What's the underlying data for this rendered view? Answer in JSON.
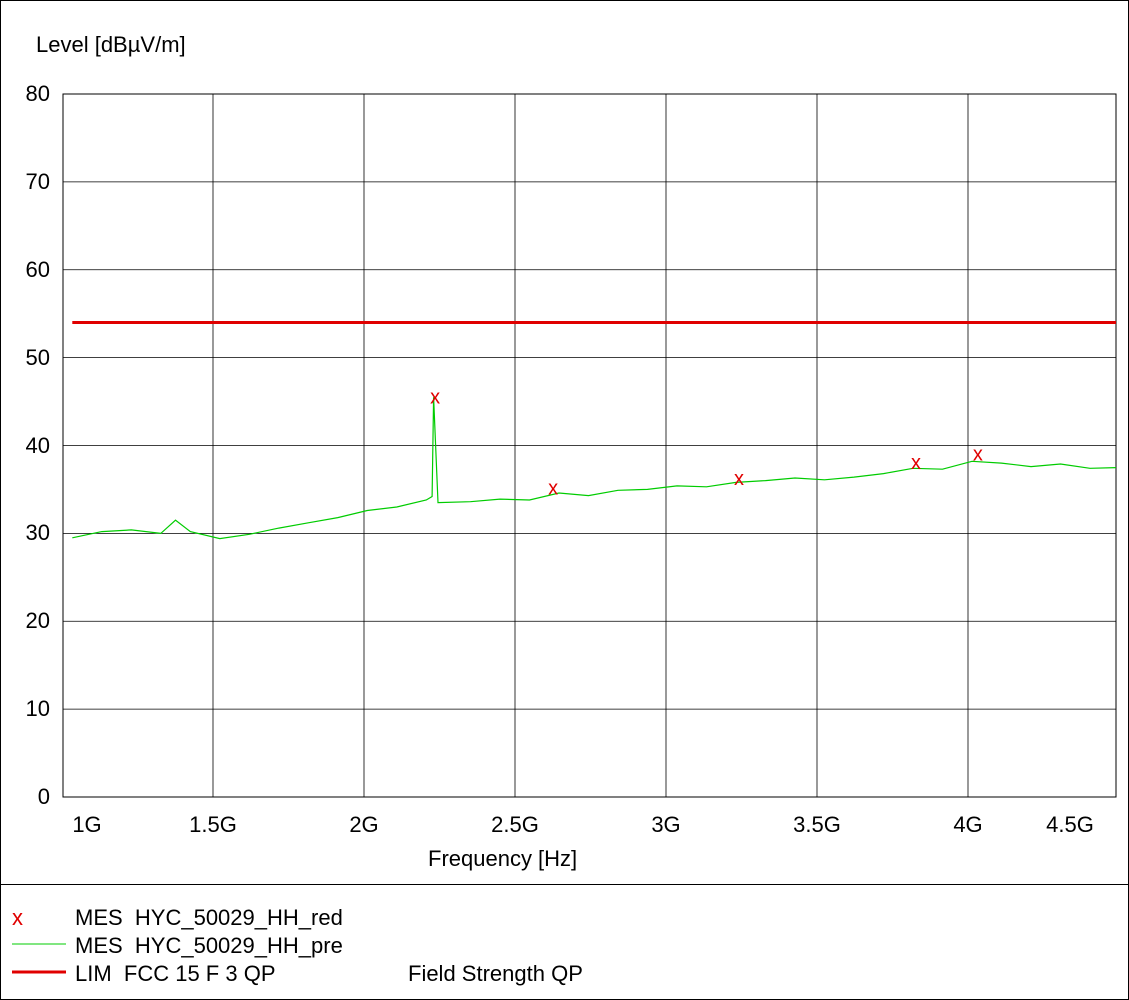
{
  "chart_data": {
    "type": "line",
    "ylabel": "Level [dBµV/m]",
    "xlabel": "Frequency [Hz]",
    "ylim": [
      0,
      80
    ],
    "xlim": [
      1000000000,
      4700000000
    ],
    "yticks": [
      "0",
      "10",
      "20",
      "30",
      "40",
      "50",
      "60",
      "70",
      "80"
    ],
    "xticks": [
      {
        "value": 1000000000,
        "label": "1G"
      },
      {
        "value": 1500000000,
        "label": "1.5G"
      },
      {
        "value": 2000000000,
        "label": "2G"
      },
      {
        "value": 2500000000,
        "label": "2.5G"
      },
      {
        "value": 3000000000,
        "label": "3G"
      },
      {
        "value": 3500000000,
        "label": "3.5G"
      },
      {
        "value": 4000000000,
        "label": "4G"
      },
      {
        "value": 4500000000,
        "label": "4.5G"
      }
    ],
    "grid": true,
    "series": [
      {
        "name": "MES  HYC_50029_HH_pre",
        "color": "#00cc00",
        "x": [
          950000000,
          1050000000,
          1150000000,
          1250000000,
          1300000000,
          1350000000,
          1450000000,
          1550000000,
          1650000000,
          1750000000,
          1850000000,
          1950000000,
          2050000000,
          2150000000,
          2170000000,
          2175000000,
          2190000000,
          2300000000,
          2400000000,
          2500000000,
          2600000000,
          2700000000,
          2800000000,
          2900000000,
          3000000000,
          3100000000,
          3200000000,
          3300000000,
          3400000000,
          3500000000,
          3600000000,
          3700000000,
          3800000000,
          3900000000,
          4000000000,
          4100000000,
          4200000000,
          4300000000,
          4400000000,
          4500000000,
          4600000000,
          4700000000
        ],
        "y": [
          29.5,
          30.2,
          30.4,
          30.0,
          31.5,
          30.2,
          29.4,
          29.9,
          30.6,
          31.2,
          31.8,
          32.6,
          33.0,
          33.8,
          34.2,
          45.5,
          33.5,
          33.6,
          33.9,
          33.8,
          34.6,
          34.3,
          34.9,
          35.0,
          35.4,
          35.3,
          35.8,
          36.0,
          36.3,
          36.1,
          36.4,
          36.8,
          37.4,
          37.3,
          38.2,
          38.0,
          37.6,
          37.9,
          37.4,
          37.5,
          37.6,
          36.8
        ]
      },
      {
        "name": "LIM  FCC 15 F 3 QP",
        "note": "Field Strength QP",
        "color": "#e00000",
        "x": [
          950000000,
          4700000000
        ],
        "y": [
          54,
          54
        ]
      }
    ],
    "markers": {
      "name": "MES  HYC_50029_HH_red",
      "color": "#e00000",
      "symbol": "x",
      "x": [
        2180000000,
        2580000000,
        3210000000,
        3810000000,
        4020000000
      ],
      "y": [
        45.6,
        35.2,
        36.3,
        38.1,
        39.1
      ]
    },
    "legend": {
      "position": "bottom",
      "entries": [
        {
          "symbol": "x",
          "label": "MES  HYC_50029_HH_red"
        },
        {
          "symbol": "green-line",
          "label": "MES  HYC_50029_HH_pre"
        },
        {
          "symbol": "red-line",
          "label": "LIM  FCC 15 F 3 QP",
          "extra": "Field Strength QP"
        }
      ]
    }
  }
}
